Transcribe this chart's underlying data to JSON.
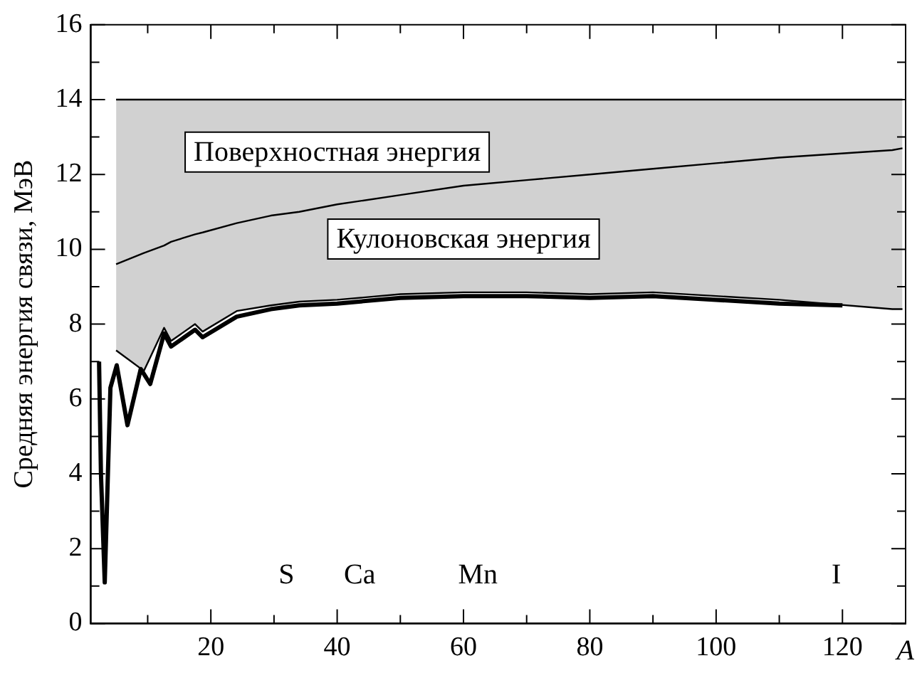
{
  "chart_data": {
    "type": "line",
    "ylabel": "Средняя энергия связи, МэВ",
    "xlabel": "A",
    "xlim": [
      1,
      130
    ],
    "xticks": [
      {
        "value": 10,
        "label": null
      },
      20,
      {
        "value": 30,
        "label": null
      },
      40,
      {
        "value": 50,
        "label": null
      },
      60,
      {
        "value": 70,
        "label": null
      },
      80,
      {
        "value": 90,
        "label": null
      },
      100,
      {
        "value": 110,
        "label": null
      },
      120,
      {
        "value": 130,
        "label": null
      }
    ],
    "ylim": [
      0,
      16
    ],
    "yticks": [
      0,
      {
        "value": 1,
        "label": null
      },
      2,
      {
        "value": 3,
        "label": null
      },
      4,
      {
        "value": 5,
        "label": null
      },
      6,
      {
        "value": 7,
        "label": null
      },
      8,
      {
        "value": 9,
        "label": null
      },
      10,
      {
        "value": 11,
        "label": null
      },
      12,
      {
        "value": 13,
        "label": null
      },
      14,
      {
        "value": 15,
        "label": null
      },
      16
    ],
    "grid": false,
    "legend": false,
    "marker": "none",
    "line_style": "solid",
    "series": [
      {
        "color": "#000000",
        "x": [
          5,
          9.4,
          12.6,
          13.7,
          17.5,
          18.7,
          24.1,
          29.5,
          34,
          40,
          50,
          60,
          70,
          80,
          90,
          100,
          110,
          127.9,
          129.5
        ],
        "values": [
          7.3,
          6.75,
          7.9,
          7.55,
          8.0,
          7.8,
          8.35,
          8.5,
          8.6,
          8.65,
          8.8,
          8.85,
          8.85,
          8.8,
          8.85,
          8.75,
          8.65,
          8.4,
          8.4
        ]
      },
      {
        "type": "area",
        "name": "Кулоновская энергия",
        "color": "#000000",
        "x": [
          5,
          9.4,
          12.6,
          13.7,
          17.5,
          18.7,
          24.1,
          29.5,
          34,
          40,
          50,
          60,
          70,
          80,
          90,
          100,
          110,
          127.9,
          129.5
        ],
        "values": [
          9.6,
          9.9,
          10.1,
          10.2,
          10.4,
          10.45,
          10.7,
          10.9,
          11.0,
          11.2,
          11.45,
          11.7,
          11.85,
          12.0,
          12.15,
          12.3,
          12.45,
          12.65,
          12.7
        ]
      },
      {
        "type": "area",
        "name": "Поверхностная энергия",
        "color": "#000000",
        "x": [
          5,
          9.4,
          12.6,
          13.7,
          17.5,
          18.7,
          24.1,
          29.5,
          34,
          40,
          50,
          60,
          70,
          80,
          90,
          100,
          110,
          127.9,
          129.5
        ],
        "values": [
          14,
          14,
          14,
          14,
          14,
          14,
          14,
          14,
          14,
          14,
          14,
          14,
          14,
          14,
          14,
          14,
          14,
          14,
          14
        ]
      },
      {
        "color": "#000000",
        "x": [
          2.3,
          2.6,
          3.2,
          4.1,
          5.1,
          6.8,
          8.9,
          10.4,
          12.6,
          13.7,
          17.5,
          18.7,
          24.1,
          29.5,
          34,
          40,
          50,
          60,
          70,
          80,
          90,
          100,
          110,
          120
        ],
        "values": [
          7.0,
          4,
          1.1,
          6.3,
          6.9,
          5.3,
          6.8,
          6.4,
          7.75,
          7.4,
          7.85,
          7.65,
          8.2,
          8.4,
          8.5,
          8.55,
          8.7,
          8.75,
          8.75,
          8.7,
          8.75,
          8.65,
          8.55,
          8.5
        ]
      }
    ],
    "annotations": [
      "S",
      "Ca",
      "Mn",
      "I"
    ]
  }
}
